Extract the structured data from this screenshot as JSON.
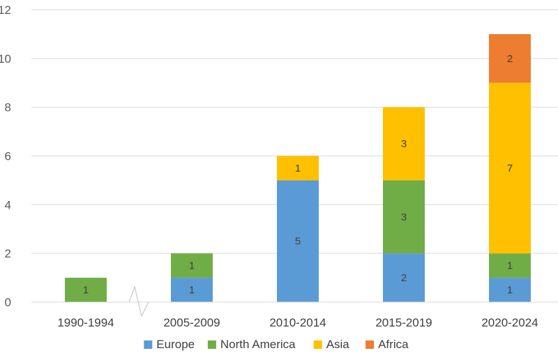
{
  "chart_data": {
    "type": "bar",
    "stacked": true,
    "title": "",
    "xlabel": "",
    "ylabel": "",
    "ylim": [
      0,
      12
    ],
    "yticks": [
      0,
      2,
      4,
      6,
      8,
      10,
      12
    ],
    "grid": true,
    "axis_break": "between 1990-1994 and 2005-2009",
    "legend_position": "bottom",
    "categories": [
      "1990-1994",
      "2005-2009",
      "2010-2014",
      "2015-2019",
      "2020-2024"
    ],
    "series": [
      {
        "name": "Europe",
        "color": "#5b9bd5",
        "values": [
          0,
          1,
          5,
          2,
          1
        ]
      },
      {
        "name": "North America",
        "color": "#70ad47",
        "values": [
          1,
          1,
          0,
          3,
          1
        ]
      },
      {
        "name": "Asia",
        "color": "#ffc000",
        "values": [
          0,
          0,
          1,
          3,
          7
        ]
      },
      {
        "name": "Africa",
        "color": "#ed7d31",
        "values": [
          0,
          0,
          0,
          0,
          2
        ]
      }
    ]
  }
}
